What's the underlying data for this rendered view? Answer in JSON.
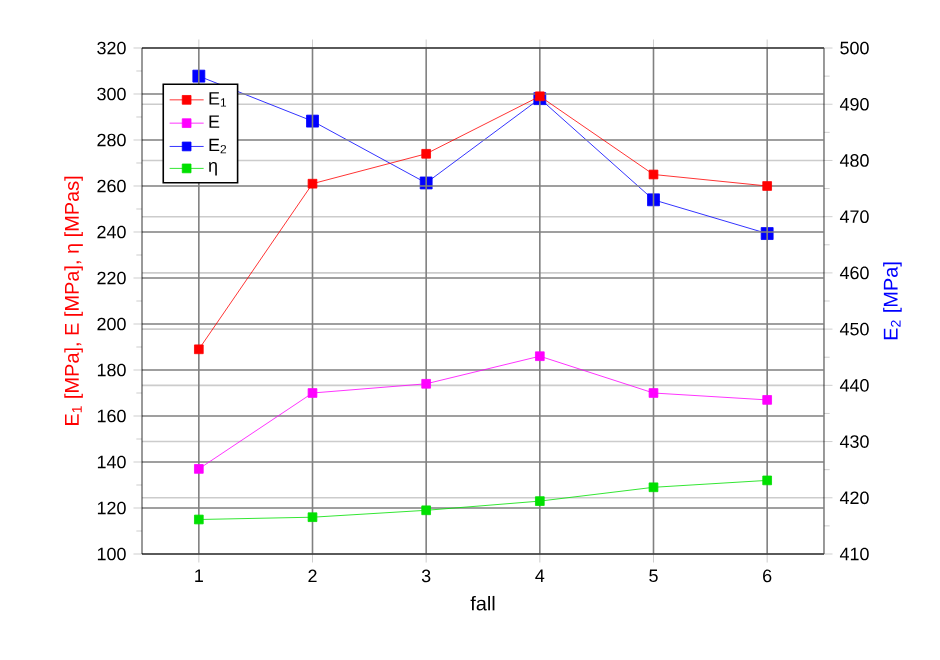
{
  "chart_data": {
    "type": "line",
    "xlabel": "fall",
    "ylabel": "E$_{1}$ [MPa], E [MPa], η [MPas]",
    "y2label": "E$_{2}$ [MPa]",
    "x": [
      1,
      2,
      3,
      4,
      5,
      6
    ],
    "xlim": [
      0.5,
      6.5
    ],
    "xticks": [
      1,
      2,
      3,
      4,
      5,
      6
    ],
    "ylim": [
      100,
      320
    ],
    "yticks": [
      100,
      120,
      140,
      160,
      180,
      200,
      220,
      240,
      260,
      280,
      300,
      320
    ],
    "y2lim": [
      410,
      500
    ],
    "y2ticks": [
      410,
      420,
      430,
      440,
      450,
      460,
      470,
      480,
      490,
      500
    ],
    "series": [
      {
        "name": "E$_{1}$",
        "color": "#ff0000",
        "values": [
          189,
          261,
          274,
          299,
          265,
          260
        ]
      },
      {
        "name": "E",
        "color": "#ff00ff",
        "values": [
          137,
          170,
          174,
          186,
          170,
          167
        ]
      },
      {
        "name": "E$_{2}$",
        "color": "#0000ff",
        "axis": "y2",
        "values": [
          495,
          487,
          476,
          491,
          473,
          467
        ]
      },
      {
        "name": "η",
        "color": "#00e000",
        "values": [
          115,
          116,
          119,
          123,
          129,
          132
        ]
      }
    ],
    "marker": "square",
    "line_style": "solid",
    "grid": true,
    "legend": "top left"
  }
}
